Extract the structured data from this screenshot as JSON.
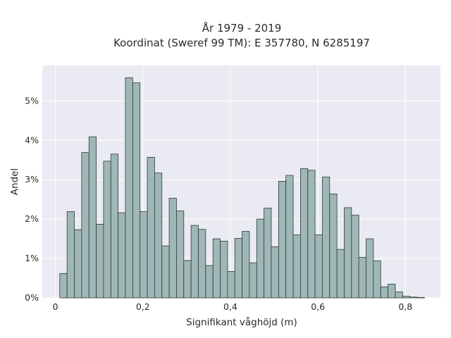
{
  "chart_data": {
    "type": "bar",
    "title_line1": "År 1979 - 2019",
    "title_line2": "Koordinat (Sweref 99 TM): E 357780, N 6285197",
    "xlabel": "Signifikant våghöjd (m)",
    "ylabel": "Andel",
    "xlim": [
      -0.03,
      0.88
    ],
    "ylim": [
      0,
      0.059
    ],
    "x_ticks": [
      0,
      0.2,
      0.4,
      0.6,
      0.8
    ],
    "x_tick_labels": [
      "0",
      "0,2",
      "0,4",
      "0,6",
      "0,8"
    ],
    "y_ticks": [
      0,
      0.01,
      0.02,
      0.03,
      0.04,
      0.05
    ],
    "y_tick_labels": [
      "0%",
      "1%",
      "2%",
      "3%",
      "4%",
      "5%"
    ],
    "grid": true,
    "bin_width": 0.01667,
    "bin_start": 0.01,
    "values": [
      0.0062,
      0.0219,
      0.0173,
      0.0369,
      0.0409,
      0.0187,
      0.0347,
      0.0365,
      0.0216,
      0.0559,
      0.0546,
      0.0219,
      0.0357,
      0.0317,
      0.0132,
      0.0253,
      0.0221,
      0.0095,
      0.0184,
      0.0174,
      0.0082,
      0.015,
      0.0144,
      0.0067,
      0.0151,
      0.0169,
      0.0089,
      0.02,
      0.0228,
      0.013,
      0.0296,
      0.0311,
      0.016,
      0.0328,
      0.0324,
      0.016,
      0.0307,
      0.0264,
      0.0123,
      0.0229,
      0.021,
      0.0103,
      0.015,
      0.0094,
      0.0028,
      0.0035,
      0.0015,
      0.0004,
      0.0002,
      0.0001
    ],
    "colors": {
      "bar_fill": "#9fb7b6",
      "bar_stroke": "#2f3a3a",
      "plot_bg": "#eaeaf2",
      "grid": "#ffffff"
    }
  }
}
